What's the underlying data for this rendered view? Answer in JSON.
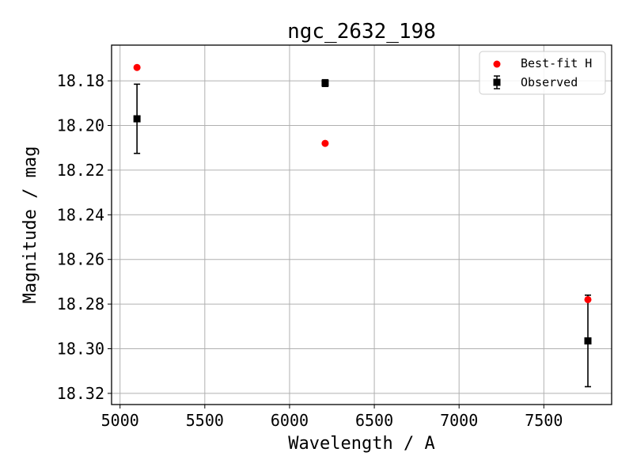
{
  "chart_data": {
    "type": "scatter",
    "title": "ngc_2632_198",
    "xlabel": "Wavelength / A",
    "ylabel": "Magnitude / mag",
    "xlim": [
      4950,
      7900
    ],
    "ylim": [
      18.325,
      18.164
    ],
    "y_inverted": true,
    "xticks": [
      5000,
      5500,
      6000,
      6500,
      7000,
      7500
    ],
    "yticks": [
      18.18,
      18.2,
      18.22,
      18.24,
      18.26,
      18.28,
      18.3,
      18.32
    ],
    "xtick_labels": [
      "5000",
      "5500",
      "6000",
      "6500",
      "7000",
      "7500"
    ],
    "ytick_labels": [
      "18.18",
      "18.20",
      "18.22",
      "18.24",
      "18.26",
      "18.28",
      "18.30",
      "18.32"
    ],
    "grid": true,
    "legend_position": "top-right",
    "series": [
      {
        "name": "Best-fit H",
        "marker": "circle",
        "color": "#ff0000",
        "points": [
          {
            "x": 5100,
            "y": 18.174
          },
          {
            "x": 6210,
            "y": 18.208
          },
          {
            "x": 7760,
            "y": 18.278
          }
        ]
      },
      {
        "name": "Observed",
        "marker": "square",
        "color": "#000000",
        "points": [
          {
            "x": 5100,
            "y": 18.197,
            "yerr": 0.0155
          },
          {
            "x": 6210,
            "y": 18.181,
            "yerr": 0.0015
          },
          {
            "x": 7760,
            "y": 18.2965,
            "yerr": 0.0205
          }
        ]
      }
    ]
  }
}
